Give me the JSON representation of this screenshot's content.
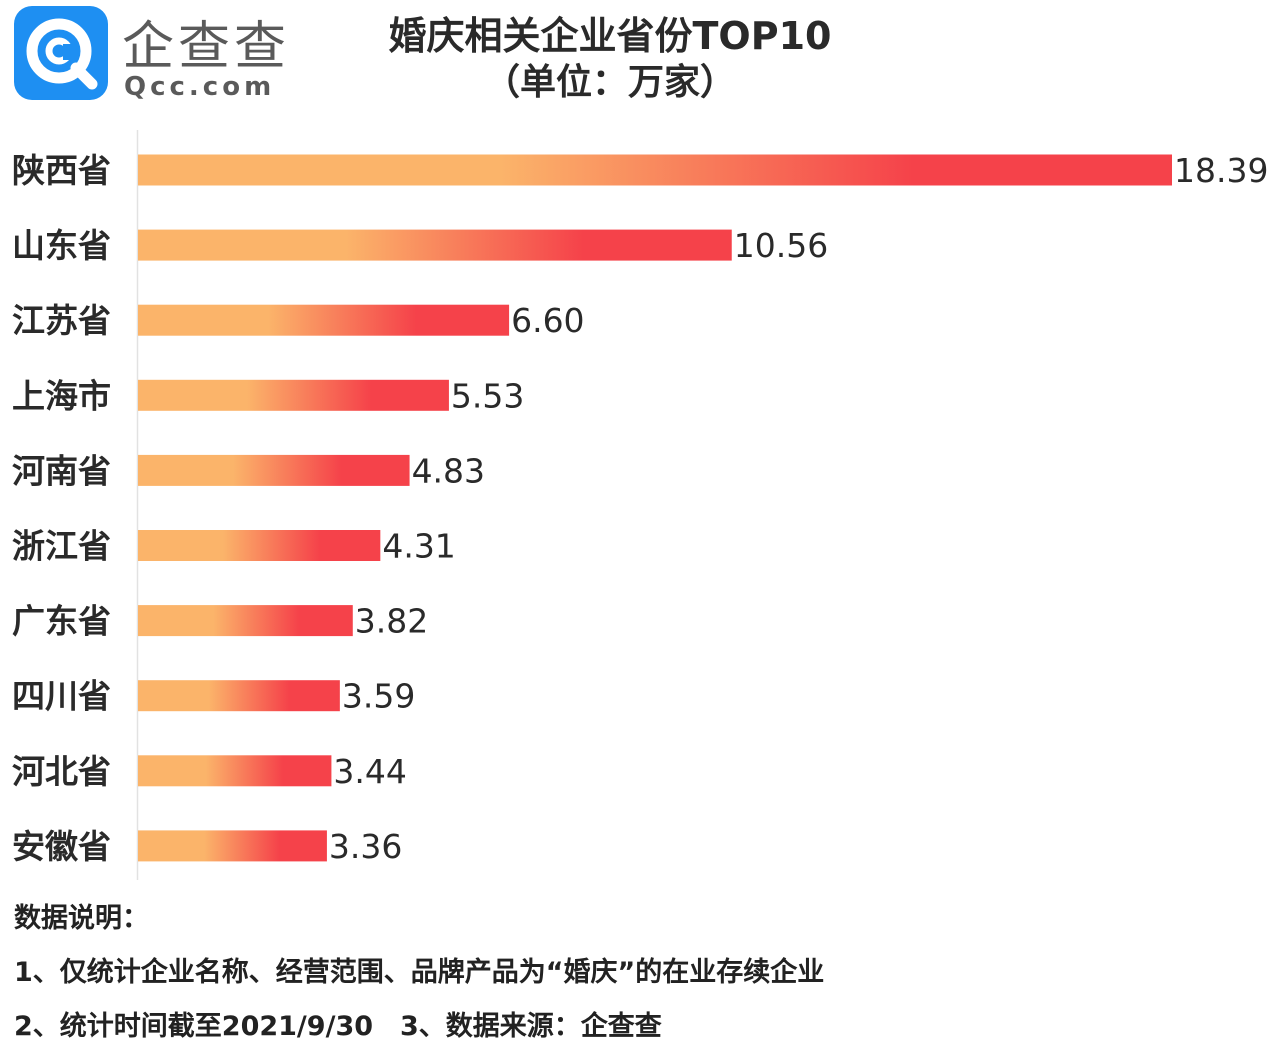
{
  "brand": {
    "logo_text_cn": "企查查",
    "logo_text_en": "Qcc.com",
    "logo_icon": "qcc-logo-icon",
    "logo_color": "#1e8ff2"
  },
  "chart_data": {
    "type": "bar",
    "orientation": "horizontal",
    "title": "婚庆相关企业省份TOP10",
    "subtitle": "（单位：万家）",
    "categories": [
      "陕西省",
      "山东省",
      "江苏省",
      "上海市",
      "河南省",
      "浙江省",
      "广东省",
      "四川省",
      "河北省",
      "安徽省"
    ],
    "values": [
      18.39,
      10.56,
      6.6,
      5.53,
      4.83,
      4.31,
      3.82,
      3.59,
      3.44,
      3.36
    ],
    "value_labels": [
      "18.39",
      "10.56",
      "6.60",
      "5.53",
      "4.83",
      "4.31",
      "3.82",
      "3.59",
      "3.44",
      "3.36"
    ],
    "xlim": [
      0,
      18.39
    ],
    "grid": false,
    "bar_gradient": [
      "#fbb46a",
      "#f5424a"
    ]
  },
  "notes": {
    "heading": "数据说明：",
    "line1": "1、仅统计企业名称、经营范围、品牌产品为“婚庆”的在业存续企业",
    "line2": "2、统计时间截至2021/9/30　3、数据来源：企查查"
  }
}
